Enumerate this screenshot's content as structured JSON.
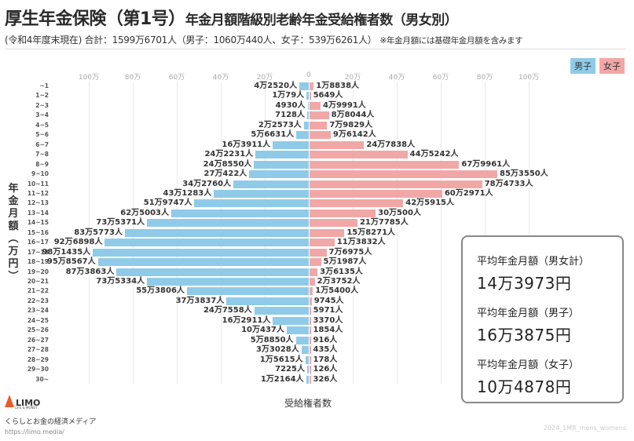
{
  "header": {
    "title_main": "厚生年金保険（第1号）",
    "title_sub": "年金月額階級別老齢年金受給権者数（男女別）",
    "subtitle": "(令和4年度末現在) 合計：1599万6701人（男子：1060万440人、女子：539万6261人）",
    "note": "※年金月額には基礎年金月額を含みます"
  },
  "legend": {
    "male": "男子",
    "female": "女子"
  },
  "axis": {
    "left_ticks": [
      "100万",
      "80万",
      "60万",
      "40万",
      "20万",
      "0"
    ],
    "right_ticks": [
      "20万",
      "40万",
      "60万",
      "80万",
      "100万"
    ],
    "ylabel": "年金月額（万円）",
    "xlabel": "受給権者数"
  },
  "chart_data": {
    "type": "bar",
    "orientation": "horizontal-population-pyramid",
    "title": "厚生年金保険（第1号）年金月額階級別老齢年金受給権者数（男女別）",
    "subtitle": "(令和4年度末現在) 合計：1599万6701人（男子：1060万440人、女子：539万6261人）",
    "xlabel": "受給権者数",
    "ylabel": "年金月額（万円）",
    "xlim": [
      -100,
      100
    ],
    "x_unit": "万人",
    "grid": true,
    "legend_position": "top-right",
    "categories": [
      "~1",
      "1~2",
      "2~3",
      "3~4",
      "4~5",
      "5~6",
      "6~7",
      "7~8",
      "8~9",
      "9~10",
      "10~11",
      "11~12",
      "12~13",
      "13~14",
      "14~15",
      "15~16",
      "16~17",
      "17~18",
      "18~19",
      "19~20",
      "20~21",
      "21~22",
      "22~23",
      "23~24",
      "24~25",
      "25~26",
      "26~27",
      "27~28",
      "28~29",
      "29~30",
      "30~"
    ],
    "series": [
      {
        "name": "男子",
        "color": "#8fcbe8",
        "values": [
          42520,
          10079,
          4930,
          7128,
          22573,
          56631,
          163911,
          242231,
          248550,
          270422,
          342760,
          431283,
          519747,
          625003,
          735371,
          835773,
          926898,
          981435,
          958567,
          873863,
          735334,
          553806,
          373837,
          247558,
          162911,
          100437,
          58850,
          33028,
          15615,
          7225,
          12164
        ],
        "labels": [
          "4万2520人",
          "1万79人",
          "4930人",
          "7128人",
          "2万2573人",
          "5万6631人",
          "16万3911人",
          "24万2231人",
          "24万8550人",
          "27万422人",
          "34万2760人",
          "43万1283人",
          "51万9747人",
          "62万5003人",
          "73万5371人",
          "83万5773人",
          "92万6898人",
          "98万1435人",
          "95万8567人",
          "87万3863人",
          "73万5334人",
          "55万3806人",
          "37万3837人",
          "24万7558人",
          "16万2911人",
          "10万437人",
          "5万8850人",
          "3万3028人",
          "1万5615人",
          "7225人",
          "1万2164人"
        ]
      },
      {
        "name": "女子",
        "color": "#f2a7a7",
        "values": [
          18838,
          5649,
          49991,
          88044,
          79829,
          96142,
          247838,
          445242,
          679961,
          853550,
          784733,
          602971,
          425915,
          300500,
          217785,
          158271,
          113832,
          76975,
          51987,
          36135,
          23752,
          15400,
          9745,
          5971,
          3370,
          1854,
          916,
          435,
          178,
          126,
          326
        ],
        "labels": [
          "1万8838人",
          "5649人",
          "4万9991人",
          "8万8044人",
          "7万9829人",
          "9万6142人",
          "24万7838人",
          "44万5242人",
          "67万9961人",
          "85万3550人",
          "78万4733人",
          "60万2971人",
          "42万5915人",
          "30万500人",
          "21万7785人",
          "15万8271人",
          "11万3832人",
          "7万6975人",
          "5万1987人",
          "3万6135人",
          "2万3752人",
          "1万5400人",
          "9745人",
          "5971人",
          "3370人",
          "1854人",
          "916人",
          "435人",
          "178人",
          "126人",
          "326人"
        ]
      }
    ]
  },
  "stats": [
    {
      "label": "平均年金月額（男女計）",
      "value": "14万3973円"
    },
    {
      "label": "平均年金月額（男子）",
      "value": "16万3875円"
    },
    {
      "label": "平均年金月額（女子）",
      "value": "10万4878円"
    }
  ],
  "footer": {
    "logo": "LIMO",
    "logo_tag": "LIFE & MONEY",
    "tagline": "くらしとお金の経済メディア",
    "url": "https://limo.media/",
    "watermark": "2024_1MR_mens_womens"
  }
}
